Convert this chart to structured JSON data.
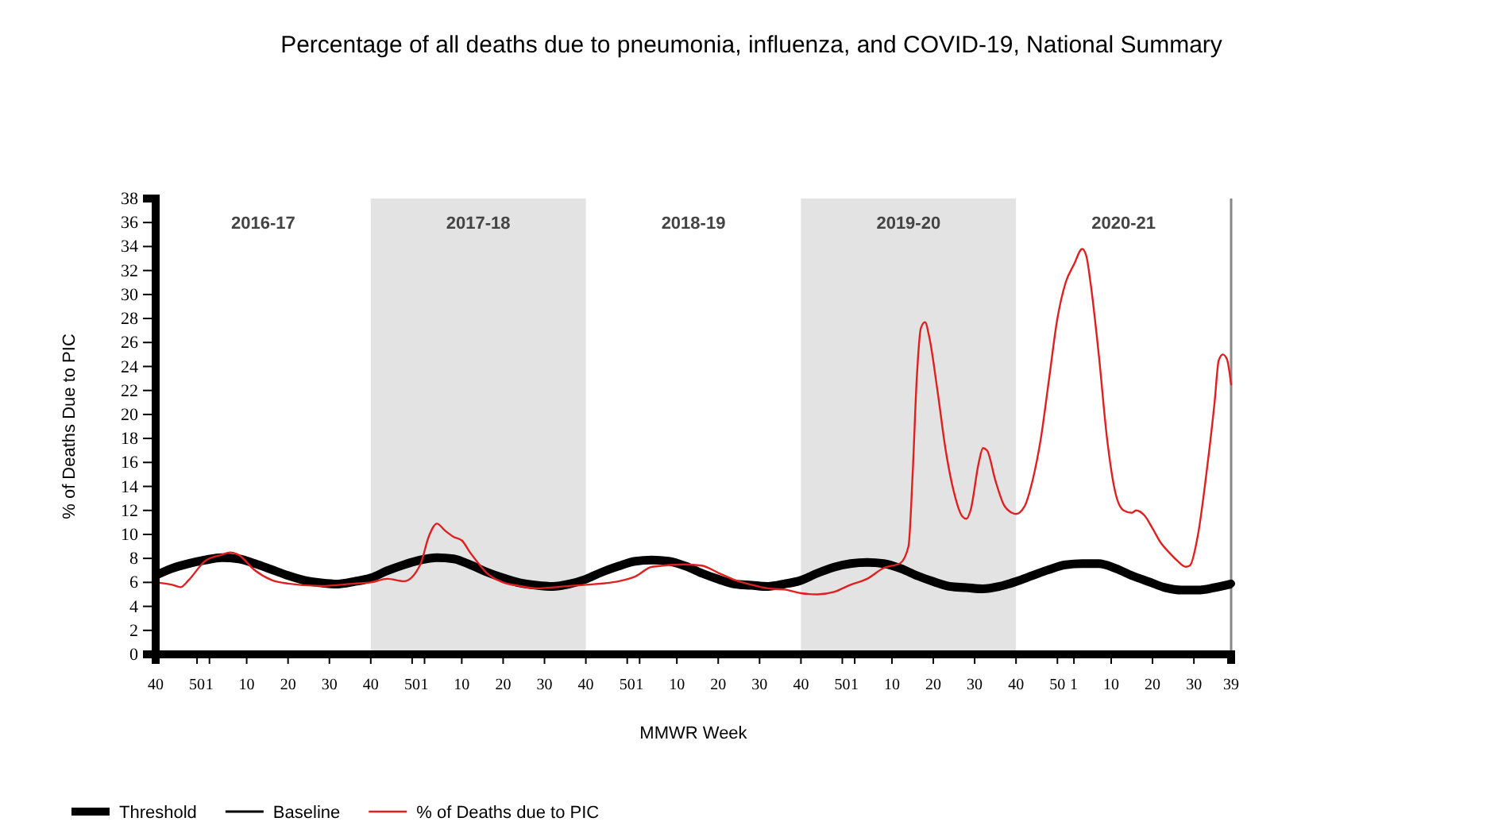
{
  "chart_data": {
    "type": "line",
    "title": "Percentage of all deaths due to pneumonia, influenza, and COVID-19, National Summary",
    "xlabel": "MMWR Week",
    "ylabel": "% of Deaths Due to PIC",
    "xlim": [
      "2016-10-02",
      "2021-09-26"
    ],
    "ylim": [
      0,
      38
    ],
    "yticks": [
      0,
      2,
      4,
      6,
      8,
      10,
      12,
      14,
      16,
      18,
      20,
      22,
      24,
      26,
      28,
      30,
      32,
      34,
      36,
      38
    ],
    "xticks": [
      {
        "value": "2016-10-02",
        "label": "40"
      },
      {
        "value": "2016-12-11",
        "label": "50"
      },
      {
        "value": "2017-01-01",
        "label": "1"
      },
      {
        "value": "2017-03-05",
        "label": "10"
      },
      {
        "value": "2017-05-14",
        "label": "20"
      },
      {
        "value": "2017-07-23",
        "label": "30"
      },
      {
        "value": "2017-10-01",
        "label": "40"
      },
      {
        "value": "2017-12-10",
        "label": "50"
      },
      {
        "value": "2017-12-31",
        "label": "1"
      },
      {
        "value": "2018-03-04",
        "label": "10"
      },
      {
        "value": "2018-05-13",
        "label": "20"
      },
      {
        "value": "2018-07-22",
        "label": "30"
      },
      {
        "value": "2018-09-30",
        "label": "40"
      },
      {
        "value": "2018-12-09",
        "label": "50"
      },
      {
        "value": "2018-12-30",
        "label": "1"
      },
      {
        "value": "2019-03-03",
        "label": "10"
      },
      {
        "value": "2019-05-12",
        "label": "20"
      },
      {
        "value": "2019-07-21",
        "label": "30"
      },
      {
        "value": "2019-09-29",
        "label": "40"
      },
      {
        "value": "2019-12-08",
        "label": "50"
      },
      {
        "value": "2019-12-29",
        "label": "1"
      },
      {
        "value": "2020-03-01",
        "label": "10"
      },
      {
        "value": "2020-05-10",
        "label": "20"
      },
      {
        "value": "2020-07-19",
        "label": "30"
      },
      {
        "value": "2020-09-27",
        "label": "40"
      },
      {
        "value": "2020-12-06",
        "label": "50"
      },
      {
        "value": "2021-01-03",
        "label": "1"
      },
      {
        "value": "2021-03-07",
        "label": "10"
      },
      {
        "value": "2021-05-16",
        "label": "20"
      },
      {
        "value": "2021-07-25",
        "label": "30"
      },
      {
        "value": "2021-09-26",
        "label": "39"
      }
    ],
    "bands": [
      {
        "axis": "x",
        "from": "2017-10-01",
        "to": "2018-09-30",
        "label": "2017-18",
        "color": "#e3e3e3"
      },
      {
        "axis": "x",
        "from": "2019-09-29",
        "to": "2020-09-27",
        "label": "2019-20",
        "color": "#e3e3e3"
      }
    ],
    "annotations": [
      "2016-17",
      "2018-19",
      "2020-21"
    ],
    "legend": "bottom",
    "grid": false,
    "line_style": "solid",
    "marker": "none",
    "series": [
      {
        "name": "Threshold",
        "color": "#000000",
        "x": [
          "2016-10-02",
          "2016-10-30",
          "2016-11-27",
          "2016-12-25",
          "2017-01-22",
          "2017-02-19",
          "2017-03-19",
          "2017-04-16",
          "2017-05-14",
          "2017-06-11",
          "2017-07-09",
          "2017-08-06",
          "2017-09-03",
          "2017-10-01",
          "2017-10-29",
          "2017-11-26",
          "2017-12-24",
          "2018-01-21",
          "2018-02-18",
          "2018-03-18",
          "2018-04-15",
          "2018-05-13",
          "2018-06-10",
          "2018-07-08",
          "2018-08-05",
          "2018-09-02",
          "2018-09-30",
          "2018-10-28",
          "2018-11-25",
          "2018-12-23",
          "2019-01-20",
          "2019-02-17",
          "2019-03-17",
          "2019-04-14",
          "2019-05-12",
          "2019-06-09",
          "2019-07-07",
          "2019-08-04",
          "2019-09-01",
          "2019-09-29",
          "2019-10-27",
          "2019-11-24",
          "2019-12-22",
          "2020-01-19",
          "2020-02-16",
          "2020-03-15",
          "2020-04-12",
          "2020-05-10",
          "2020-06-07",
          "2020-07-05",
          "2020-08-02",
          "2020-08-30",
          "2020-09-27",
          "2020-10-25",
          "2020-11-22",
          "2020-12-20",
          "2021-01-17",
          "2021-02-14",
          "2021-03-14",
          "2021-04-11",
          "2021-05-09",
          "2021-06-06",
          "2021-07-04",
          "2021-08-01",
          "2021-08-29",
          "2021-09-26"
        ],
        "values": [
          6.6,
          7.2,
          7.6,
          7.9,
          8.1,
          8.0,
          7.6,
          7.1,
          6.6,
          6.2,
          6.0,
          5.9,
          6.1,
          6.4,
          7.0,
          7.5,
          7.9,
          8.1,
          8.0,
          7.5,
          6.9,
          6.4,
          6.0,
          5.8,
          5.7,
          5.9,
          6.3,
          6.9,
          7.4,
          7.8,
          7.9,
          7.8,
          7.4,
          6.8,
          6.3,
          5.9,
          5.8,
          5.7,
          5.9,
          6.2,
          6.8,
          7.3,
          7.6,
          7.7,
          7.6,
          7.2,
          6.6,
          6.1,
          5.7,
          5.6,
          5.5,
          5.7,
          6.1,
          6.6,
          7.1,
          7.5,
          7.6,
          7.6,
          7.2,
          6.6,
          6.1,
          5.6,
          5.4,
          5.4,
          5.6,
          5.9
        ]
      },
      {
        "name": "Baseline",
        "color": "#000000",
        "x": [
          "2016-10-02",
          "2016-10-30",
          "2016-11-27",
          "2016-12-25",
          "2017-01-22",
          "2017-02-19",
          "2017-03-19",
          "2017-04-16",
          "2017-05-14",
          "2017-06-11",
          "2017-07-09",
          "2017-08-06",
          "2017-09-03",
          "2017-10-01",
          "2017-10-29",
          "2017-11-26",
          "2017-12-24",
          "2018-01-21",
          "2018-02-18",
          "2018-03-18",
          "2018-04-15",
          "2018-05-13",
          "2018-06-10",
          "2018-07-08",
          "2018-08-05",
          "2018-09-02",
          "2018-09-30",
          "2018-10-28",
          "2018-11-25",
          "2018-12-23",
          "2019-01-20",
          "2019-02-17",
          "2019-03-17",
          "2019-04-14",
          "2019-05-12",
          "2019-06-09",
          "2019-07-07",
          "2019-08-04",
          "2019-09-01",
          "2019-09-29",
          "2019-10-27",
          "2019-11-24",
          "2019-12-22",
          "2020-01-19",
          "2020-02-16",
          "2020-03-15",
          "2020-04-12",
          "2020-05-10",
          "2020-06-07",
          "2020-07-05",
          "2020-08-02",
          "2020-08-30",
          "2020-09-27",
          "2020-10-25",
          "2020-11-22",
          "2020-12-20",
          "2021-01-17",
          "2021-02-14",
          "2021-03-14",
          "2021-04-11",
          "2021-05-09",
          "2021-06-06",
          "2021-07-04",
          "2021-08-01",
          "2021-08-29",
          "2021-09-26"
        ],
        "values": [
          6.3,
          6.9,
          7.3,
          7.6,
          7.8,
          7.7,
          7.3,
          6.8,
          6.3,
          5.9,
          5.7,
          5.6,
          5.8,
          6.1,
          6.7,
          7.2,
          7.6,
          7.8,
          7.7,
          7.2,
          6.6,
          6.1,
          5.7,
          5.5,
          5.4,
          5.6,
          6.0,
          6.6,
          7.1,
          7.5,
          7.6,
          7.5,
          7.1,
          6.5,
          6.0,
          5.6,
          5.5,
          5.4,
          5.6,
          5.9,
          6.5,
          7.0,
          7.3,
          7.4,
          7.3,
          6.9,
          6.3,
          5.8,
          5.4,
          5.3,
          5.2,
          5.4,
          5.8,
          6.3,
          6.8,
          7.2,
          7.3,
          7.3,
          6.9,
          6.3,
          5.8,
          5.3,
          5.1,
          5.1,
          5.3,
          5.6
        ]
      },
      {
        "name": "% of Deaths due to PIC",
        "color": "#e02020",
        "x": [
          "2016-10-02",
          "2016-10-30",
          "2016-11-13",
          "2016-11-27",
          "2016-12-25",
          "2017-01-22",
          "2017-02-05",
          "2017-02-19",
          "2017-03-19",
          "2017-04-16",
          "2017-05-14",
          "2017-07-09",
          "2017-09-03",
          "2017-10-01",
          "2017-10-29",
          "2017-11-26",
          "2017-12-24",
          "2018-01-07",
          "2018-01-21",
          "2018-02-04",
          "2018-02-18",
          "2018-03-04",
          "2018-03-18",
          "2018-04-01",
          "2018-04-15",
          "2018-05-13",
          "2018-06-10",
          "2018-07-08",
          "2018-09-02",
          "2018-09-30",
          "2018-11-25",
          "2018-12-23",
          "2019-01-20",
          "2019-03-17",
          "2019-04-14",
          "2019-05-12",
          "2019-06-09",
          "2019-07-07",
          "2019-08-04",
          "2019-09-01",
          "2019-09-29",
          "2019-10-27",
          "2019-11-24",
          "2019-12-22",
          "2020-01-19",
          "2020-02-16",
          "2020-03-15",
          "2020-03-29",
          "2020-04-05",
          "2020-04-12",
          "2020-04-19",
          "2020-04-26",
          "2020-05-03",
          "2020-05-17",
          "2020-05-31",
          "2020-06-14",
          "2020-06-28",
          "2020-07-05",
          "2020-07-12",
          "2020-07-26",
          "2020-08-02",
          "2020-08-09",
          "2020-08-23",
          "2020-09-06",
          "2020-09-20",
          "2020-09-27",
          "2020-10-11",
          "2020-10-25",
          "2020-11-08",
          "2020-11-22",
          "2020-12-06",
          "2020-12-20",
          "2021-01-03",
          "2021-01-17",
          "2021-01-24",
          "2021-01-31",
          "2021-02-14",
          "2021-02-28",
          "2021-03-14",
          "2021-03-28",
          "2021-04-11",
          "2021-04-18",
          "2021-05-02",
          "2021-05-16",
          "2021-05-30",
          "2021-06-13",
          "2021-06-27",
          "2021-07-11",
          "2021-07-18",
          "2021-08-01",
          "2021-08-15",
          "2021-08-29",
          "2021-09-05",
          "2021-09-12",
          "2021-09-19",
          "2021-09-26"
        ],
        "values": [
          6.0,
          5.8,
          5.6,
          6.2,
          7.8,
          8.3,
          8.5,
          8.3,
          7.0,
          6.2,
          5.9,
          5.7,
          5.9,
          6.0,
          6.3,
          6.1,
          7.5,
          9.8,
          10.9,
          10.3,
          9.8,
          9.5,
          8.5,
          7.6,
          6.8,
          6.0,
          5.7,
          5.5,
          5.7,
          5.8,
          6.1,
          6.5,
          7.3,
          7.5,
          7.4,
          6.8,
          6.2,
          5.8,
          5.5,
          5.4,
          5.1,
          5.0,
          5.2,
          5.8,
          6.3,
          7.2,
          7.6,
          9.0,
          15.0,
          23.0,
          27.2,
          27.7,
          26.5,
          22.0,
          17.0,
          13.5,
          11.5,
          11.3,
          12.0,
          16.0,
          17.2,
          17.0,
          14.5,
          12.5,
          11.8,
          11.7,
          12.3,
          14.5,
          18.0,
          23.0,
          28.0,
          31.0,
          32.5,
          33.8,
          33.2,
          31.0,
          25.0,
          18.0,
          13.5,
          12.0,
          11.8,
          12.0,
          11.6,
          10.5,
          9.3,
          8.5,
          7.8,
          7.3,
          7.4,
          10.0,
          15.0,
          21.0,
          24.5,
          25.0,
          24.6,
          22.5
        ]
      }
    ]
  }
}
